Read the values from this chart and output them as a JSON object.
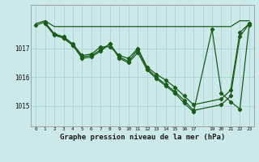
{
  "background_color": "#cce9e9",
  "line_color": "#1a5c1a",
  "grid_color": "#aad4d4",
  "title": "Graphe pression niveau de la mer (hPa)",
  "xlim": [
    -0.5,
    23.5
  ],
  "ylim": [
    1014.3,
    1018.5
  ],
  "yticks": [
    1015,
    1016,
    1017
  ],
  "xtick_labels": [
    "0",
    "1",
    "2",
    "3",
    "4",
    "5",
    "6",
    "7",
    "8",
    "9",
    "10",
    "11",
    "12",
    "13",
    "14",
    "15",
    "16",
    "17",
    "",
    "19",
    "20",
    "21",
    "22",
    "23"
  ],
  "xtick_positions": [
    0,
    1,
    2,
    3,
    4,
    5,
    6,
    7,
    8,
    9,
    10,
    11,
    12,
    13,
    14,
    15,
    16,
    17,
    18,
    19,
    20,
    21,
    22,
    23
  ],
  "line1_x": [
    0,
    1,
    2,
    3,
    4,
    5,
    6,
    7,
    8,
    9,
    10,
    11,
    12,
    13,
    14,
    15,
    16,
    17,
    19,
    20,
    21,
    22,
    23
  ],
  "line1_y": [
    1017.85,
    1017.95,
    1017.75,
    1017.75,
    1017.75,
    1017.75,
    1017.75,
    1017.75,
    1017.75,
    1017.75,
    1017.75,
    1017.75,
    1017.75,
    1017.75,
    1017.75,
    1017.75,
    1017.75,
    1017.75,
    1017.75,
    1017.75,
    1017.75,
    1017.95,
    1017.95
  ],
  "line2_x": [
    0,
    1,
    2,
    3,
    4,
    5,
    6,
    7,
    8,
    9,
    10,
    11,
    12,
    13,
    14,
    15,
    16,
    17,
    20,
    21,
    22,
    23
  ],
  "line2_y": [
    1017.8,
    1017.9,
    1017.5,
    1017.4,
    1017.15,
    1016.75,
    1016.8,
    1017.05,
    1017.05,
    1016.75,
    1016.65,
    1017.0,
    1016.35,
    1016.1,
    1015.9,
    1015.65,
    1015.35,
    1015.05,
    1015.25,
    1015.55,
    1017.55,
    1017.85
  ],
  "line3_x": [
    1,
    2,
    3,
    4,
    5,
    6,
    7,
    8,
    9,
    10,
    11,
    12,
    13,
    14,
    15,
    16,
    17,
    20,
    21,
    22,
    23
  ],
  "line3_y": [
    1017.85,
    1017.5,
    1017.35,
    1017.1,
    1016.7,
    1016.75,
    1016.95,
    1017.15,
    1016.7,
    1016.55,
    1016.95,
    1016.3,
    1016.0,
    1015.75,
    1015.5,
    1015.2,
    1014.85,
    1015.05,
    1015.35,
    1017.4,
    1017.85
  ],
  "line4_x": [
    1,
    2,
    3,
    4,
    5,
    6,
    7,
    8,
    9,
    10,
    11,
    12,
    13,
    14,
    15,
    16,
    17,
    19,
    20,
    21,
    22,
    23
  ],
  "line4_y": [
    1017.85,
    1017.45,
    1017.35,
    1017.1,
    1016.65,
    1016.7,
    1016.9,
    1017.15,
    1016.65,
    1016.5,
    1016.85,
    1016.25,
    1015.95,
    1015.7,
    1015.45,
    1015.1,
    1014.8,
    1017.65,
    1015.45,
    1015.15,
    1014.9,
    1017.8
  ]
}
